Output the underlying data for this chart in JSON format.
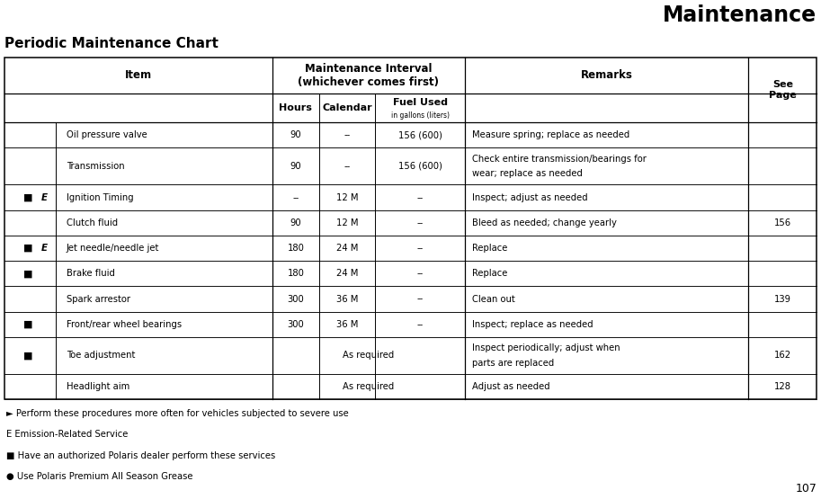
{
  "title": "Maintenance",
  "subtitle": "Periodic Maintenance Chart",
  "page_number": "107",
  "background_color": "#ffffff",
  "rows": [
    {
      "symbol": "",
      "e": "",
      "item": "Oil pressure valve",
      "hours": "90",
      "calendar": "--",
      "fuel": "156 (600)",
      "remarks": "Measure spring; replace as needed",
      "page": ""
    },
    {
      "symbol": "",
      "e": "",
      "item": "Transmission",
      "hours": "90",
      "calendar": "--",
      "fuel": "156 (600)",
      "remarks": "Check entire transmission/bearings for\nwear; replace as needed",
      "page": ""
    },
    {
      "symbol": "■",
      "e": "E",
      "item": "Ignition Timing",
      "hours": "--",
      "calendar": "12 M",
      "fuel": "--",
      "remarks": "Inspect; adjust as needed",
      "page": ""
    },
    {
      "symbol": "",
      "e": "",
      "item": "Clutch fluid",
      "hours": "90",
      "calendar": "12 M",
      "fuel": "--",
      "remarks": "Bleed as needed; change yearly",
      "page": "156"
    },
    {
      "symbol": "■",
      "e": "E",
      "item": "Jet needle/needle jet",
      "hours": "180",
      "calendar": "24 M",
      "fuel": "--",
      "remarks": "Replace",
      "page": ""
    },
    {
      "symbol": "■",
      "e": "",
      "item": "Brake fluid",
      "hours": "180",
      "calendar": "24 M",
      "fuel": "--",
      "remarks": "Replace",
      "page": ""
    },
    {
      "symbol": "",
      "e": "",
      "item": "Spark arrestor",
      "hours": "300",
      "calendar": "36 M",
      "fuel": "--",
      "remarks": "Clean out",
      "page": "139"
    },
    {
      "symbol": "■",
      "e": "",
      "item": "Front/rear wheel bearings",
      "hours": "300",
      "calendar": "36 M",
      "fuel": "--",
      "remarks": "Inspect; replace as needed",
      "page": ""
    },
    {
      "symbol": "■",
      "e": "",
      "item": "Toe adjustment",
      "hours": "",
      "calendar": "As required",
      "fuel": "",
      "remarks": "Inspect periodically; adjust when\nparts are replaced",
      "page": "162"
    },
    {
      "symbol": "",
      "e": "",
      "item": "Headlight aim",
      "hours": "",
      "calendar": "As required",
      "fuel": "",
      "remarks": "Adjust as needed",
      "page": "128"
    }
  ],
  "footnotes": [
    [
      "►",
      " Perform these procedures more often for vehicles subjected to severe use"
    ],
    [
      "E",
      " Emission-Related Service"
    ],
    [
      "■",
      " Have an authorized Polaris dealer perform these services"
    ],
    [
      "●",
      " Use Polaris Premium All Season Grease"
    ]
  ]
}
